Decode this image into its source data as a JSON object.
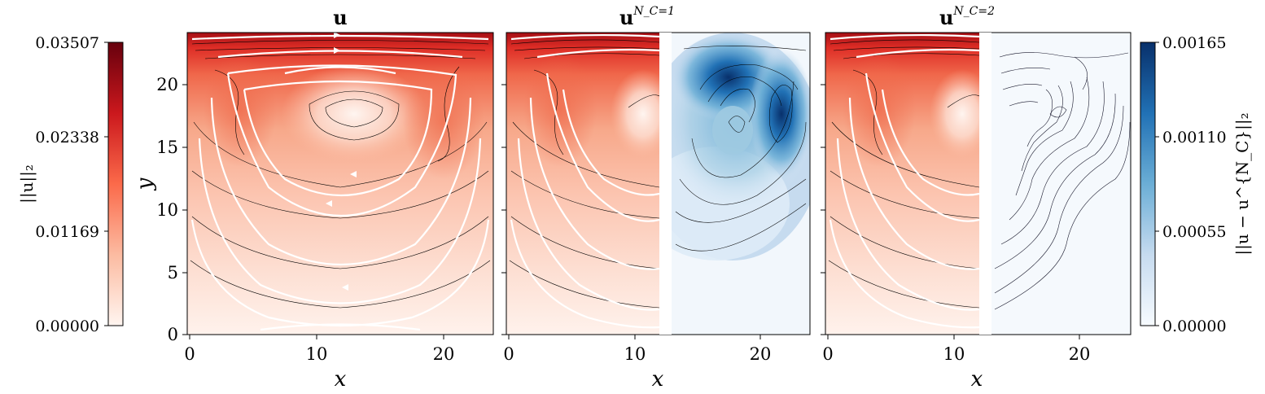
{
  "chart_data": [
    {
      "type": "heatmap",
      "panel": "u",
      "title": "u",
      "title_sup": "",
      "xlabel": "x",
      "ylabel": "y",
      "xlim": [
        0,
        24
      ],
      "ylim": [
        0,
        24
      ],
      "xticks": [
        "0",
        "10",
        "20"
      ],
      "yticks": [
        "0",
        "5",
        "10",
        "15",
        "20"
      ],
      "fields": [
        "velocity magnitude"
      ],
      "streamlines": true
    },
    {
      "type": "heatmap",
      "panel": "uNC1",
      "title": "u",
      "title_sup": "N_C=1",
      "xlabel": "x",
      "xlim": [
        0,
        24
      ],
      "ylim": [
        0,
        24
      ],
      "xticks": [
        "0",
        "10",
        "20"
      ],
      "left_half": "velocity magnitude with streamlines",
      "right_half": "error magnitude contours"
    },
    {
      "type": "heatmap",
      "panel": "uNC2",
      "title": "u",
      "title_sup": "N_C=2",
      "xlabel": "x",
      "xlim": [
        0,
        24
      ],
      "ylim": [
        0,
        24
      ],
      "xticks": [
        "0",
        "10",
        "20"
      ],
      "left_half": "velocity magnitude with streamlines",
      "right_half": "error magnitude contours"
    }
  ],
  "colorbars": {
    "left": {
      "label": "||u||₂",
      "ticks": [
        "0.03507",
        "0.02338",
        "0.01169",
        "0.00000"
      ],
      "range": [
        0.0,
        0.03507
      ],
      "colormap": "Reds",
      "colors": [
        "#67000d",
        "#cb181d",
        "#fb6a4a",
        "#fcbba1",
        "#fff5f0"
      ]
    },
    "right": {
      "label": "||u − u^{N_C}||₂",
      "ticks": [
        "0.00165",
        "0.00110",
        "0.00055",
        "0.00000"
      ],
      "range": [
        0.0,
        0.00165
      ],
      "colormap": "Blues",
      "colors": [
        "#08306b",
        "#2171b5",
        "#6baed6",
        "#c6dbef",
        "#f7fbff"
      ]
    }
  }
}
